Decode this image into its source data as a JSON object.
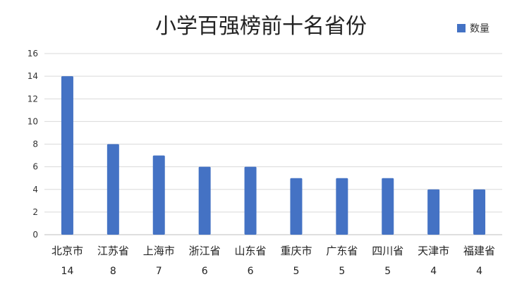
{
  "chart_data": {
    "type": "bar",
    "title": "小学百强榜前十名省份",
    "categories": [
      "北京市",
      "江苏省",
      "上海市",
      "浙江省",
      "山东省",
      "重庆市",
      "广东省",
      "四川省",
      "天津市",
      "福建省"
    ],
    "series": [
      {
        "name": "数量",
        "values": [
          14,
          8,
          7,
          6,
          6,
          5,
          5,
          5,
          4,
          4
        ]
      }
    ],
    "value_labels": [
      "14",
      "8",
      "7",
      "6",
      "6",
      "5",
      "5",
      "5",
      "4",
      "4"
    ],
    "y_ticks": [
      "0",
      "2",
      "4",
      "6",
      "8",
      "10",
      "12",
      "14",
      "16"
    ],
    "ylim": [
      0,
      16
    ],
    "grid": true,
    "legend_position": "top-right",
    "colors": {
      "bar": "#4472C4",
      "grid": "#d9d9d9",
      "axis": "#bfbfbf"
    }
  }
}
